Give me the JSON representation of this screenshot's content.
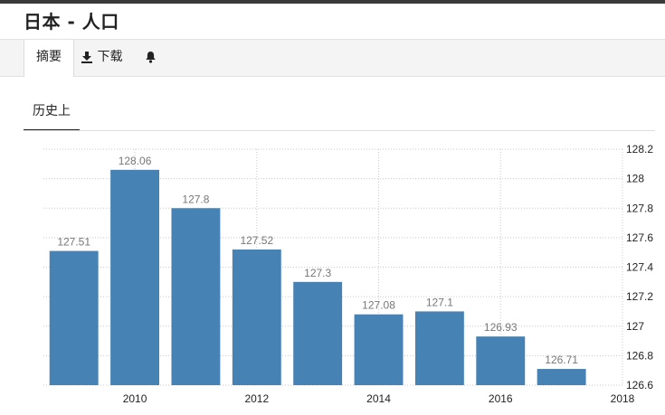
{
  "page": {
    "title": "日本 - 人口"
  },
  "tabs": {
    "summary": "摘要",
    "download": "下载"
  },
  "icons": {
    "download": "download-icon",
    "alert": "bell-icon"
  },
  "subtab": {
    "history": "历史上"
  },
  "colors": {
    "bar": "#4682b4",
    "grid": "#c8c8c8"
  },
  "chart_data": {
    "type": "bar",
    "x": [
      2009,
      2010,
      2011,
      2012,
      2013,
      2014,
      2015,
      2016,
      2017
    ],
    "values": [
      127.51,
      128.06,
      127.8,
      127.52,
      127.3,
      127.08,
      127.1,
      126.93,
      126.71
    ],
    "data_labels": [
      "127.51",
      "128.06",
      "127.8",
      "127.52",
      "127.3",
      "127.08",
      "127.1",
      "126.93",
      "126.71"
    ],
    "x_ticks": [
      "2010",
      "2012",
      "2014",
      "2016",
      "2018"
    ],
    "y_ticks": [
      "128.2",
      "128",
      "127.8",
      "127.6",
      "127.4",
      "127.2",
      "127",
      "126.8",
      "126.6"
    ],
    "ylim": [
      126.6,
      128.2
    ],
    "xlim": [
      2008.5,
      2018
    ],
    "grid": true,
    "y_axis_side": "right"
  }
}
